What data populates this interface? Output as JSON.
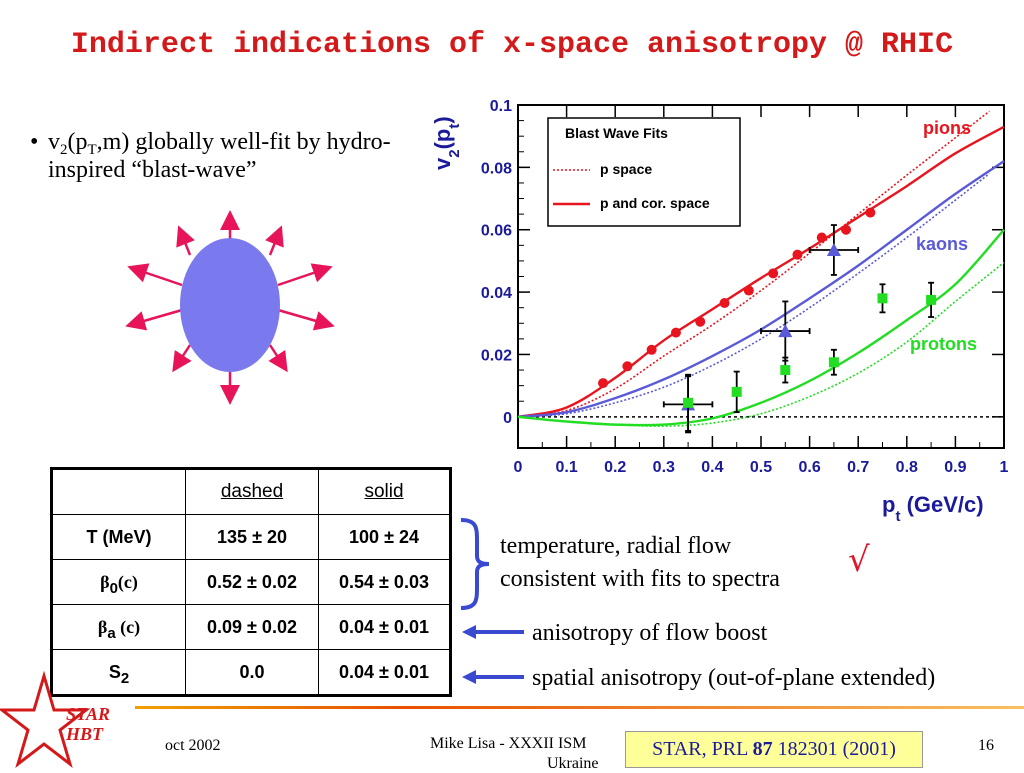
{
  "slide": {
    "title": "Indirect indications of x-space anisotropy @ RHIC",
    "bullet": {
      "v": "v",
      "v_sub": "2",
      "open": "(p",
      "pt_sub": "T",
      "rest": ",m) globally well-fit by hydro-inspired “blast-wave”"
    }
  },
  "table": {
    "headers": [
      "",
      "dashed",
      "solid"
    ],
    "rows": [
      {
        "label": "T (MeV)",
        "dashed": "135 ± 20",
        "solid": "100 ± 24"
      },
      {
        "label_sym": "β",
        "label_sub": "0",
        "label_tail": "(c)",
        "dashed": "0.52 ± 0.02",
        "solid": "0.54 ± 0.03"
      },
      {
        "label_sym": "β",
        "label_sub": "a",
        "label_tail": " (c)",
        "dashed": "0.09 ± 0.02",
        "solid": "0.04 ± 0.01"
      },
      {
        "label_sym": "S",
        "label_sub": "2",
        "label_tail": "",
        "dashed": "0.0",
        "solid": "0.04 ± 0.01"
      }
    ]
  },
  "notes": {
    "temperature": "temperature, radial flow",
    "consistent": "consistent with fits to spectra",
    "check": "√",
    "anisotropy_flow": "anisotropy of flow boost",
    "spatial": "spatial anisotropy (out-of-plane extended)"
  },
  "footer": {
    "date": "oct 2002",
    "author": "Mike Lisa - XXXII ISM",
    "author2": "Ukraine",
    "page": "16",
    "logo_line1": "STAR",
    "logo_line2": "HBT",
    "ref_pre": "STAR, PRL ",
    "ref_vol": "87",
    "ref_post": " 182301 (2001)"
  },
  "colors": {
    "title": "#d4191a",
    "pions": "#e8141e",
    "kaons": "#5a5ad8",
    "protons": "#22dd22",
    "ellipse": "#7a7aee",
    "arrows": "#e8145a",
    "brace": "#3a4ad0"
  },
  "chart_data": {
    "type": "scatter",
    "ylabel_main": "v",
    "ylabel_sub": "2",
    "ylabel_arg": "(p",
    "ylabel_arg_sub": "t",
    "ylabel_close": ")",
    "xlabel_main": "p",
    "xlabel_sub": "t",
    "xlabel_units": " (GeV/c)",
    "xlim": [
      0,
      1
    ],
    "ylim": [
      -0.01,
      0.1
    ],
    "xticks": [
      "0",
      "0.1",
      "0.2",
      "0.3",
      "0.4",
      "0.5",
      "0.6",
      "0.7",
      "0.8",
      "0.9",
      "1"
    ],
    "yticks": [
      "0",
      "0.02",
      "0.04",
      "0.06",
      "0.08",
      "0.1"
    ],
    "legend": {
      "title": "Blast Wave Fits",
      "dashed": "p space",
      "solid": "p and cor. space"
    },
    "series": [
      {
        "name": "pions",
        "color": "#e8141e",
        "marker": "circle",
        "points": [
          {
            "x": 0.175,
            "y": 0.0108
          },
          {
            "x": 0.225,
            "y": 0.0162
          },
          {
            "x": 0.275,
            "y": 0.0215
          },
          {
            "x": 0.325,
            "y": 0.027
          },
          {
            "x": 0.375,
            "y": 0.0305
          },
          {
            "x": 0.425,
            "y": 0.0365
          },
          {
            "x": 0.475,
            "y": 0.0405
          },
          {
            "x": 0.525,
            "y": 0.046
          },
          {
            "x": 0.575,
            "y": 0.052
          },
          {
            "x": 0.625,
            "y": 0.0575
          },
          {
            "x": 0.675,
            "y": 0.06
          },
          {
            "x": 0.725,
            "y": 0.0655
          }
        ],
        "fit_solid": [
          [
            0,
            0
          ],
          [
            0.1,
            0.003
          ],
          [
            0.2,
            0.0125
          ],
          [
            0.3,
            0.0245
          ],
          [
            0.4,
            0.0345
          ],
          [
            0.5,
            0.0445
          ],
          [
            0.6,
            0.054
          ],
          [
            0.7,
            0.064
          ],
          [
            0.8,
            0.074
          ],
          [
            0.9,
            0.0845
          ],
          [
            1.0,
            0.093
          ]
        ],
        "fit_dashed": [
          [
            0,
            0
          ],
          [
            0.1,
            0.002
          ],
          [
            0.2,
            0.009
          ],
          [
            0.3,
            0.0195
          ],
          [
            0.4,
            0.0295
          ],
          [
            0.5,
            0.0405
          ],
          [
            0.6,
            0.0525
          ],
          [
            0.7,
            0.065
          ],
          [
            0.8,
            0.0775
          ],
          [
            0.9,
            0.0895
          ],
          [
            0.97,
            0.098
          ]
        ]
      },
      {
        "name": "kaons",
        "color": "#5a5ad8",
        "marker": "triangle",
        "points": [
          {
            "x": 0.35,
            "y": 0.004,
            "xerr": 0.05,
            "yerr": 0.009
          },
          {
            "x": 0.55,
            "y": 0.0275,
            "xerr": 0.05,
            "yerr": 0.0095
          },
          {
            "x": 0.65,
            "y": 0.0535,
            "xerr": 0.05,
            "yerr": 0.008
          }
        ],
        "fit_solid": [
          [
            0,
            0
          ],
          [
            0.1,
            0.0015
          ],
          [
            0.2,
            0.006
          ],
          [
            0.3,
            0.012
          ],
          [
            0.4,
            0.0195
          ],
          [
            0.5,
            0.028
          ],
          [
            0.6,
            0.038
          ],
          [
            0.7,
            0.0485
          ],
          [
            0.8,
            0.06
          ],
          [
            0.9,
            0.0715
          ],
          [
            1.0,
            0.082
          ]
        ],
        "fit_dashed": [
          [
            0,
            0
          ],
          [
            0.1,
            0.001
          ],
          [
            0.2,
            0.0045
          ],
          [
            0.3,
            0.0095
          ],
          [
            0.4,
            0.0165
          ],
          [
            0.5,
            0.025
          ],
          [
            0.6,
            0.035
          ],
          [
            0.7,
            0.046
          ],
          [
            0.8,
            0.0575
          ],
          [
            0.9,
            0.0695
          ],
          [
            0.97,
            0.078
          ]
        ]
      },
      {
        "name": "protons",
        "color": "#22dd22",
        "marker": "square",
        "points": [
          {
            "x": 0.35,
            "y": 0.0045,
            "yerr": 0.009
          },
          {
            "x": 0.45,
            "y": 0.008,
            "yerr": 0.0065
          },
          {
            "x": 0.55,
            "y": 0.015,
            "yerr": 0.004
          },
          {
            "x": 0.65,
            "y": 0.0175,
            "yerr": 0.004
          },
          {
            "x": 0.75,
            "y": 0.038,
            "yerr": 0.0045
          },
          {
            "x": 0.85,
            "y": 0.0375,
            "yerr": 0.0055
          }
        ],
        "fit_solid": [
          [
            0,
            0
          ],
          [
            0.1,
            -0.0015
          ],
          [
            0.2,
            -0.0025
          ],
          [
            0.3,
            -0.0025
          ],
          [
            0.4,
            -0.0005
          ],
          [
            0.5,
            0.0045
          ],
          [
            0.6,
            0.0115
          ],
          [
            0.7,
            0.0205
          ],
          [
            0.8,
            0.031
          ],
          [
            0.9,
            0.0425
          ],
          [
            1.0,
            0.06
          ]
        ],
        "fit_dashed": [
          [
            0,
            0
          ],
          [
            0.1,
            -0.0015
          ],
          [
            0.2,
            -0.0025
          ],
          [
            0.3,
            -0.003
          ],
          [
            0.4,
            -0.002
          ],
          [
            0.5,
            0.001
          ],
          [
            0.6,
            0.0065
          ],
          [
            0.7,
            0.014
          ],
          [
            0.8,
            0.024
          ],
          [
            0.9,
            0.037
          ],
          [
            1.0,
            0.0495
          ]
        ]
      }
    ]
  }
}
